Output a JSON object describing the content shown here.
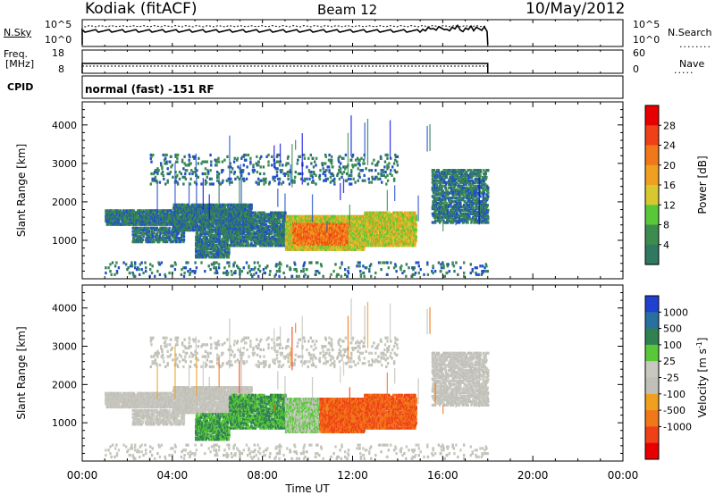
{
  "header": {
    "station": "Kodiak (fitACF)",
    "beam": "Beam 12",
    "date": "10/May/2012"
  },
  "top_panels": {
    "nsky_label": "N.Sky",
    "nsky_ticks": [
      "10^5",
      "10^0"
    ],
    "nsearch_label": "N.Search",
    "nsearch_ticks": [
      "10^5",
      "10^0"
    ],
    "freq_label_1": "Freq.",
    "freq_label_2": "[MHz]",
    "freq_ticks": [
      "18",
      "8"
    ],
    "nave_label": "Nave",
    "nave_ticks": [
      "60",
      "0"
    ],
    "cpid_label": "CPID",
    "cpid_text": "normal (fast) -151 RF"
  },
  "colors": {
    "power": [
      "#1010e8",
      "#2050c8",
      "#307860",
      "#3c8c50",
      "#58c838",
      "#d8c830",
      "#f0a020",
      "#f07818",
      "#f04018",
      "#e80000"
    ],
    "velocity": [
      "#2040d0",
      "#2870a0",
      "#308050",
      "#58c838",
      "#c8c8c0",
      "#c0c0b8",
      "#f0a020",
      "#f07818",
      "#f04018",
      "#e80000"
    ]
  },
  "chart_data": [
    {
      "type": "heatmap",
      "name": "power",
      "ylabel": "Slant Range [km]",
      "xlabel": "Time UT",
      "ylim": [
        0,
        4600
      ],
      "xlim": [
        0,
        24
      ],
      "x_ticks": [
        "00:00",
        "04:00",
        "08:00",
        "12:00",
        "16:00",
        "20:00",
        "00:00"
      ],
      "y_ticks": [
        "1000",
        "2000",
        "3000",
        "4000"
      ],
      "colorbar_label": "Power [dB]",
      "colorbar_ticks": [
        "4",
        "8",
        "12",
        "16",
        "20",
        "24",
        "28"
      ],
      "data_extent_hours": [
        1.0,
        18.0
      ]
    },
    {
      "type": "heatmap",
      "name": "velocity",
      "ylabel": "Slant Range [km]",
      "xlabel": "Time UT",
      "ylim": [
        0,
        4600
      ],
      "xlim": [
        0,
        24
      ],
      "x_ticks": [
        "00:00",
        "04:00",
        "08:00",
        "12:00",
        "16:00",
        "20:00",
        "00:00"
      ],
      "y_ticks": [
        "1000",
        "2000",
        "3000",
        "4000"
      ],
      "colorbar_label": "Velocity [m s",
      "colorbar_label_sup": "-1",
      "colorbar_label_end": "]",
      "colorbar_ticks": [
        "1000",
        "500",
        "100",
        "25",
        "-25",
        "-100",
        "-500",
        "-1000"
      ]
    }
  ]
}
